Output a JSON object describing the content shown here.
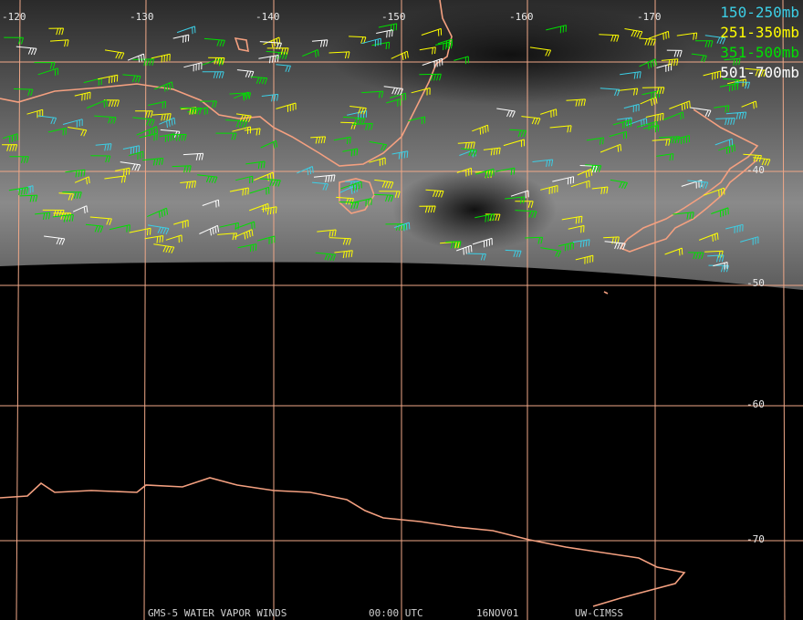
{
  "map": {
    "lon_labels": [
      -120,
      -130,
      -140,
      -150,
      -160,
      -170
    ],
    "lat_labels": [
      -40,
      -50,
      -60,
      -70
    ],
    "legend": [
      {
        "label": "150-250mb",
        "color": "#3ccfe6"
      },
      {
        "label": "251-350mb",
        "color": "#ffff00"
      },
      {
        "label": "351-500mb",
        "color": "#00e000"
      },
      {
        "label": "501-700mb",
        "color": "#ffffff"
      }
    ],
    "footer": [
      "GMS-5 WATER VAPOR WINDS",
      "00:00 UTC",
      "16NOV01",
      "UW-CIMSS"
    ]
  }
}
